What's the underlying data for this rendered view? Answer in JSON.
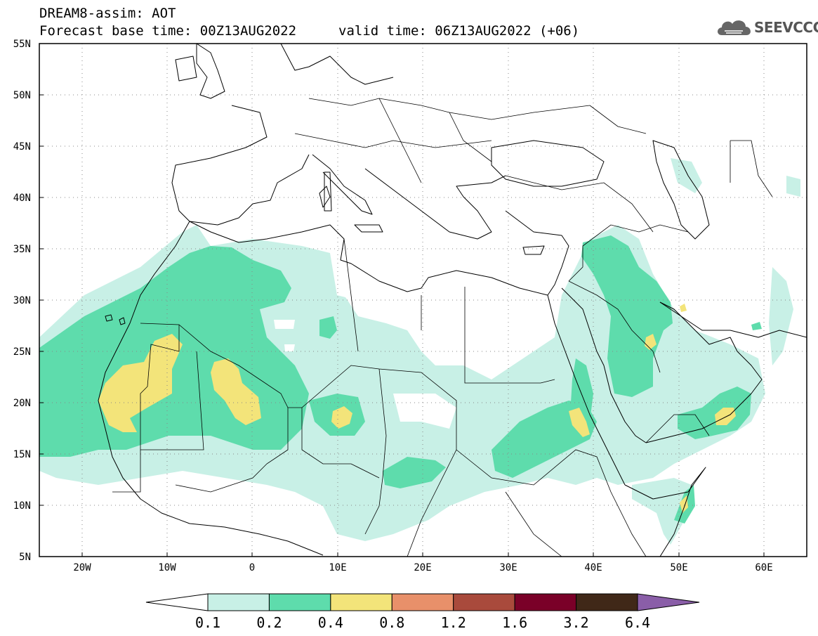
{
  "header": {
    "title": "DREAM8-assim: AOT",
    "base_time": "Forecast base time: 00Z13AUG2022",
    "valid_time": "valid time: 06Z13AUG2022 (+06)"
  },
  "logo": {
    "text": "SEEVCCC",
    "icon": "cloud-icon"
  },
  "map": {
    "lon_range": [
      -25,
      65
    ],
    "lat_range": [
      5,
      55
    ],
    "lat_labels": [
      "55N",
      "50N",
      "45N",
      "40N",
      "35N",
      "30N",
      "25N",
      "20N",
      "15N",
      "10N",
      "5N"
    ],
    "lon_labels": [
      "20W",
      "10W",
      "0",
      "10E",
      "20E",
      "30E",
      "40E",
      "50E",
      "60E"
    ],
    "field": "Aerosol Optical Thickness"
  },
  "colorbar": {
    "levels": [
      "0.1",
      "0.2",
      "0.4",
      "0.8",
      "1.2",
      "1.6",
      "3.2",
      "6.4"
    ],
    "colors": [
      "#ffffff",
      "#c8f0e6",
      "#5edcac",
      "#f3e47a",
      "#e8906a",
      "#a94a3c",
      "#7a0028",
      "#402818",
      "#8a5ea8"
    ]
  }
}
